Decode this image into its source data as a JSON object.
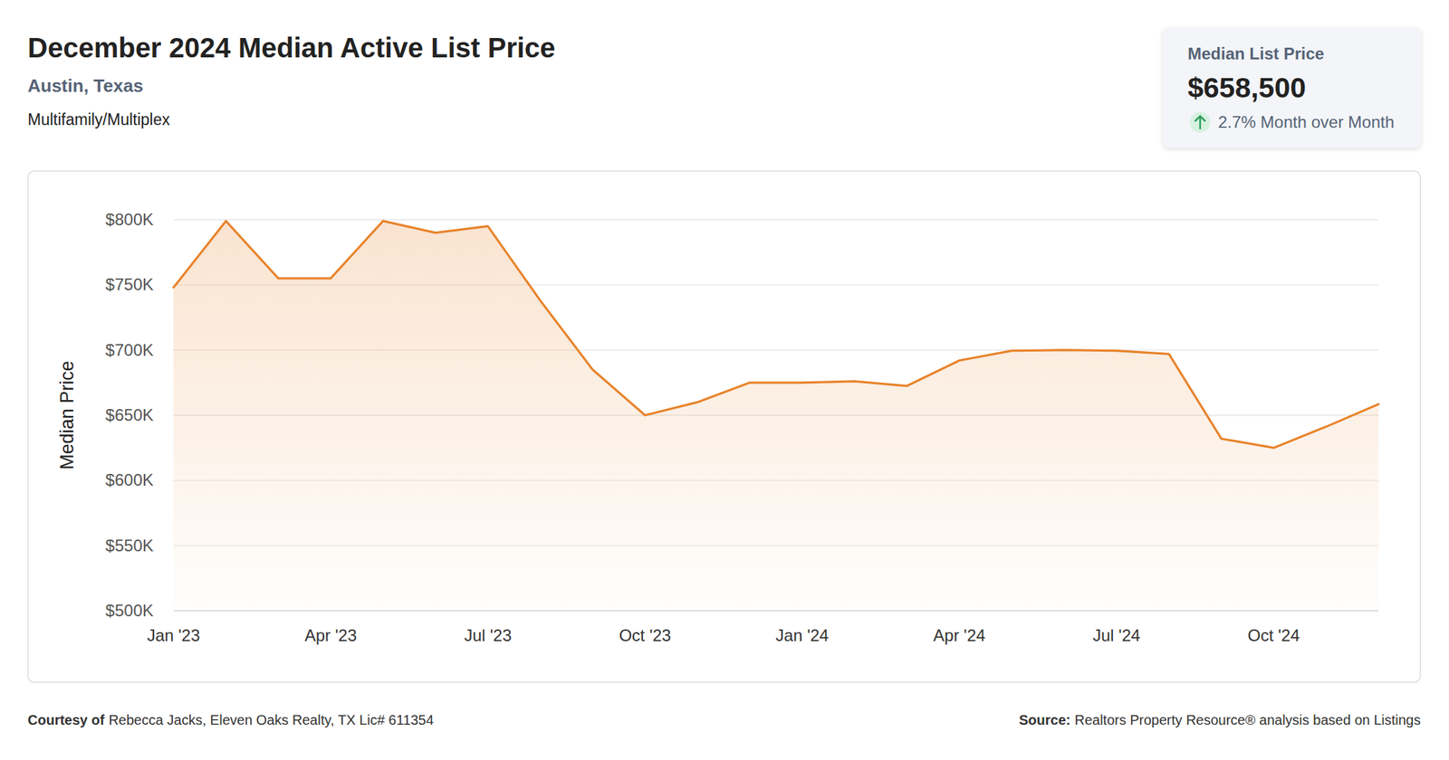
{
  "chart_data": {
    "type": "line",
    "title": "December 2024 Median Active List Price",
    "subtitle": "Austin, Texas",
    "y_label": "Median Price",
    "categories": [
      "Jan '23",
      null,
      null,
      "Apr '23",
      null,
      null,
      "Jul '23",
      null,
      null,
      "Oct '23",
      null,
      null,
      "Jan '24",
      null,
      null,
      "Apr '24",
      null,
      null,
      "Jul '24",
      null,
      null,
      "Oct '24",
      null,
      null
    ],
    "values": [
      748000,
      799000,
      755000,
      755000,
      799000,
      790000,
      795000,
      738000,
      685000,
      650000,
      660000,
      675000,
      675000,
      676000,
      672500,
      692000,
      699500,
      700000,
      699500,
      697000,
      632000,
      625000,
      641200,
      658500
    ],
    "color": "#e8832a",
    "ylim": [
      500000,
      800000
    ],
    "yticks": [
      {
        "value": 500000,
        "label": "$500K"
      },
      {
        "value": 550000,
        "label": "$550K"
      },
      {
        "value": 600000,
        "label": "$600K"
      },
      {
        "value": 650000,
        "label": "$650K"
      },
      {
        "value": 700000,
        "label": "$700K"
      },
      {
        "value": 750000,
        "label": "$750K"
      },
      {
        "value": 800000,
        "label": "$800K"
      }
    ],
    "grid": true,
    "annotations": {
      "property_type": "Multifamily/Multiplex",
      "card_title": "Median List Price",
      "card_value": "$658,500",
      "card_change": "2.7% Month over Month",
      "credit_label": "Courtesy of",
      "credit": "Rebecca Jacks, Eleven Oaks Realty, TX Lic# 611354",
      "source_label": "Source:",
      "source": "Realtors Property Resource® analysis based on Listings"
    }
  }
}
